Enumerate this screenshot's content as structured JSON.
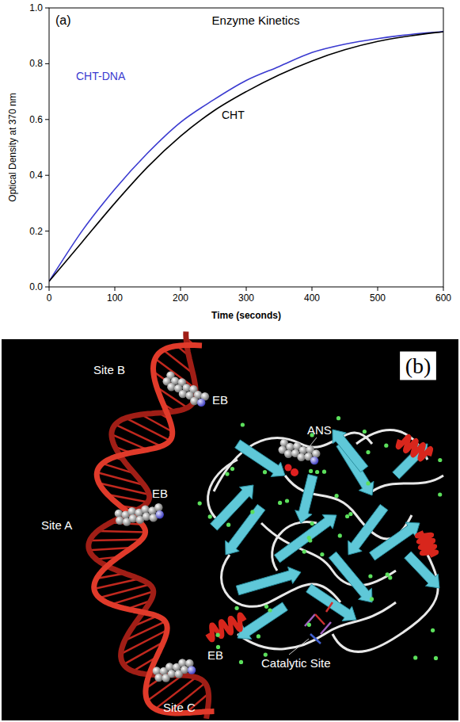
{
  "chart_data": {
    "type": "line",
    "title": "Enzyme Kinetics",
    "annotations": [
      "(a)"
    ],
    "x_label": "Time (seconds)",
    "y_label": "Optical Density at 370 nm",
    "x": [
      0,
      50,
      100,
      150,
      200,
      250,
      300,
      350,
      400,
      450,
      500,
      550,
      600
    ],
    "series": [
      {
        "name": "CHT-DNA",
        "color": "#3a3ad0",
        "values": [
          0.02,
          0.2,
          0.35,
          0.48,
          0.59,
          0.67,
          0.74,
          0.79,
          0.84,
          0.87,
          0.89,
          0.905,
          0.915
        ]
      },
      {
        "name": "CHT",
        "color": "#000000",
        "values": [
          0.02,
          0.16,
          0.3,
          0.43,
          0.54,
          0.63,
          0.7,
          0.76,
          0.81,
          0.85,
          0.88,
          0.9,
          0.915
        ]
      }
    ],
    "xlim": [
      0,
      600
    ],
    "ylim": [
      0,
      1
    ],
    "xticks": [
      0,
      100,
      200,
      300,
      400,
      500,
      600
    ],
    "yticks": [
      {
        "value": 0,
        "label": "0.0"
      },
      0.2,
      0.4,
      0.6,
      0.8,
      {
        "value": 1,
        "label": "1.0"
      }
    ],
    "grid": false
  },
  "diagram": {
    "panel_label": "(b)",
    "labels": [
      "Site B",
      "EB",
      "Site A",
      "EB",
      "Site C",
      "EB",
      "ANS",
      "Catalytic Site"
    ]
  }
}
